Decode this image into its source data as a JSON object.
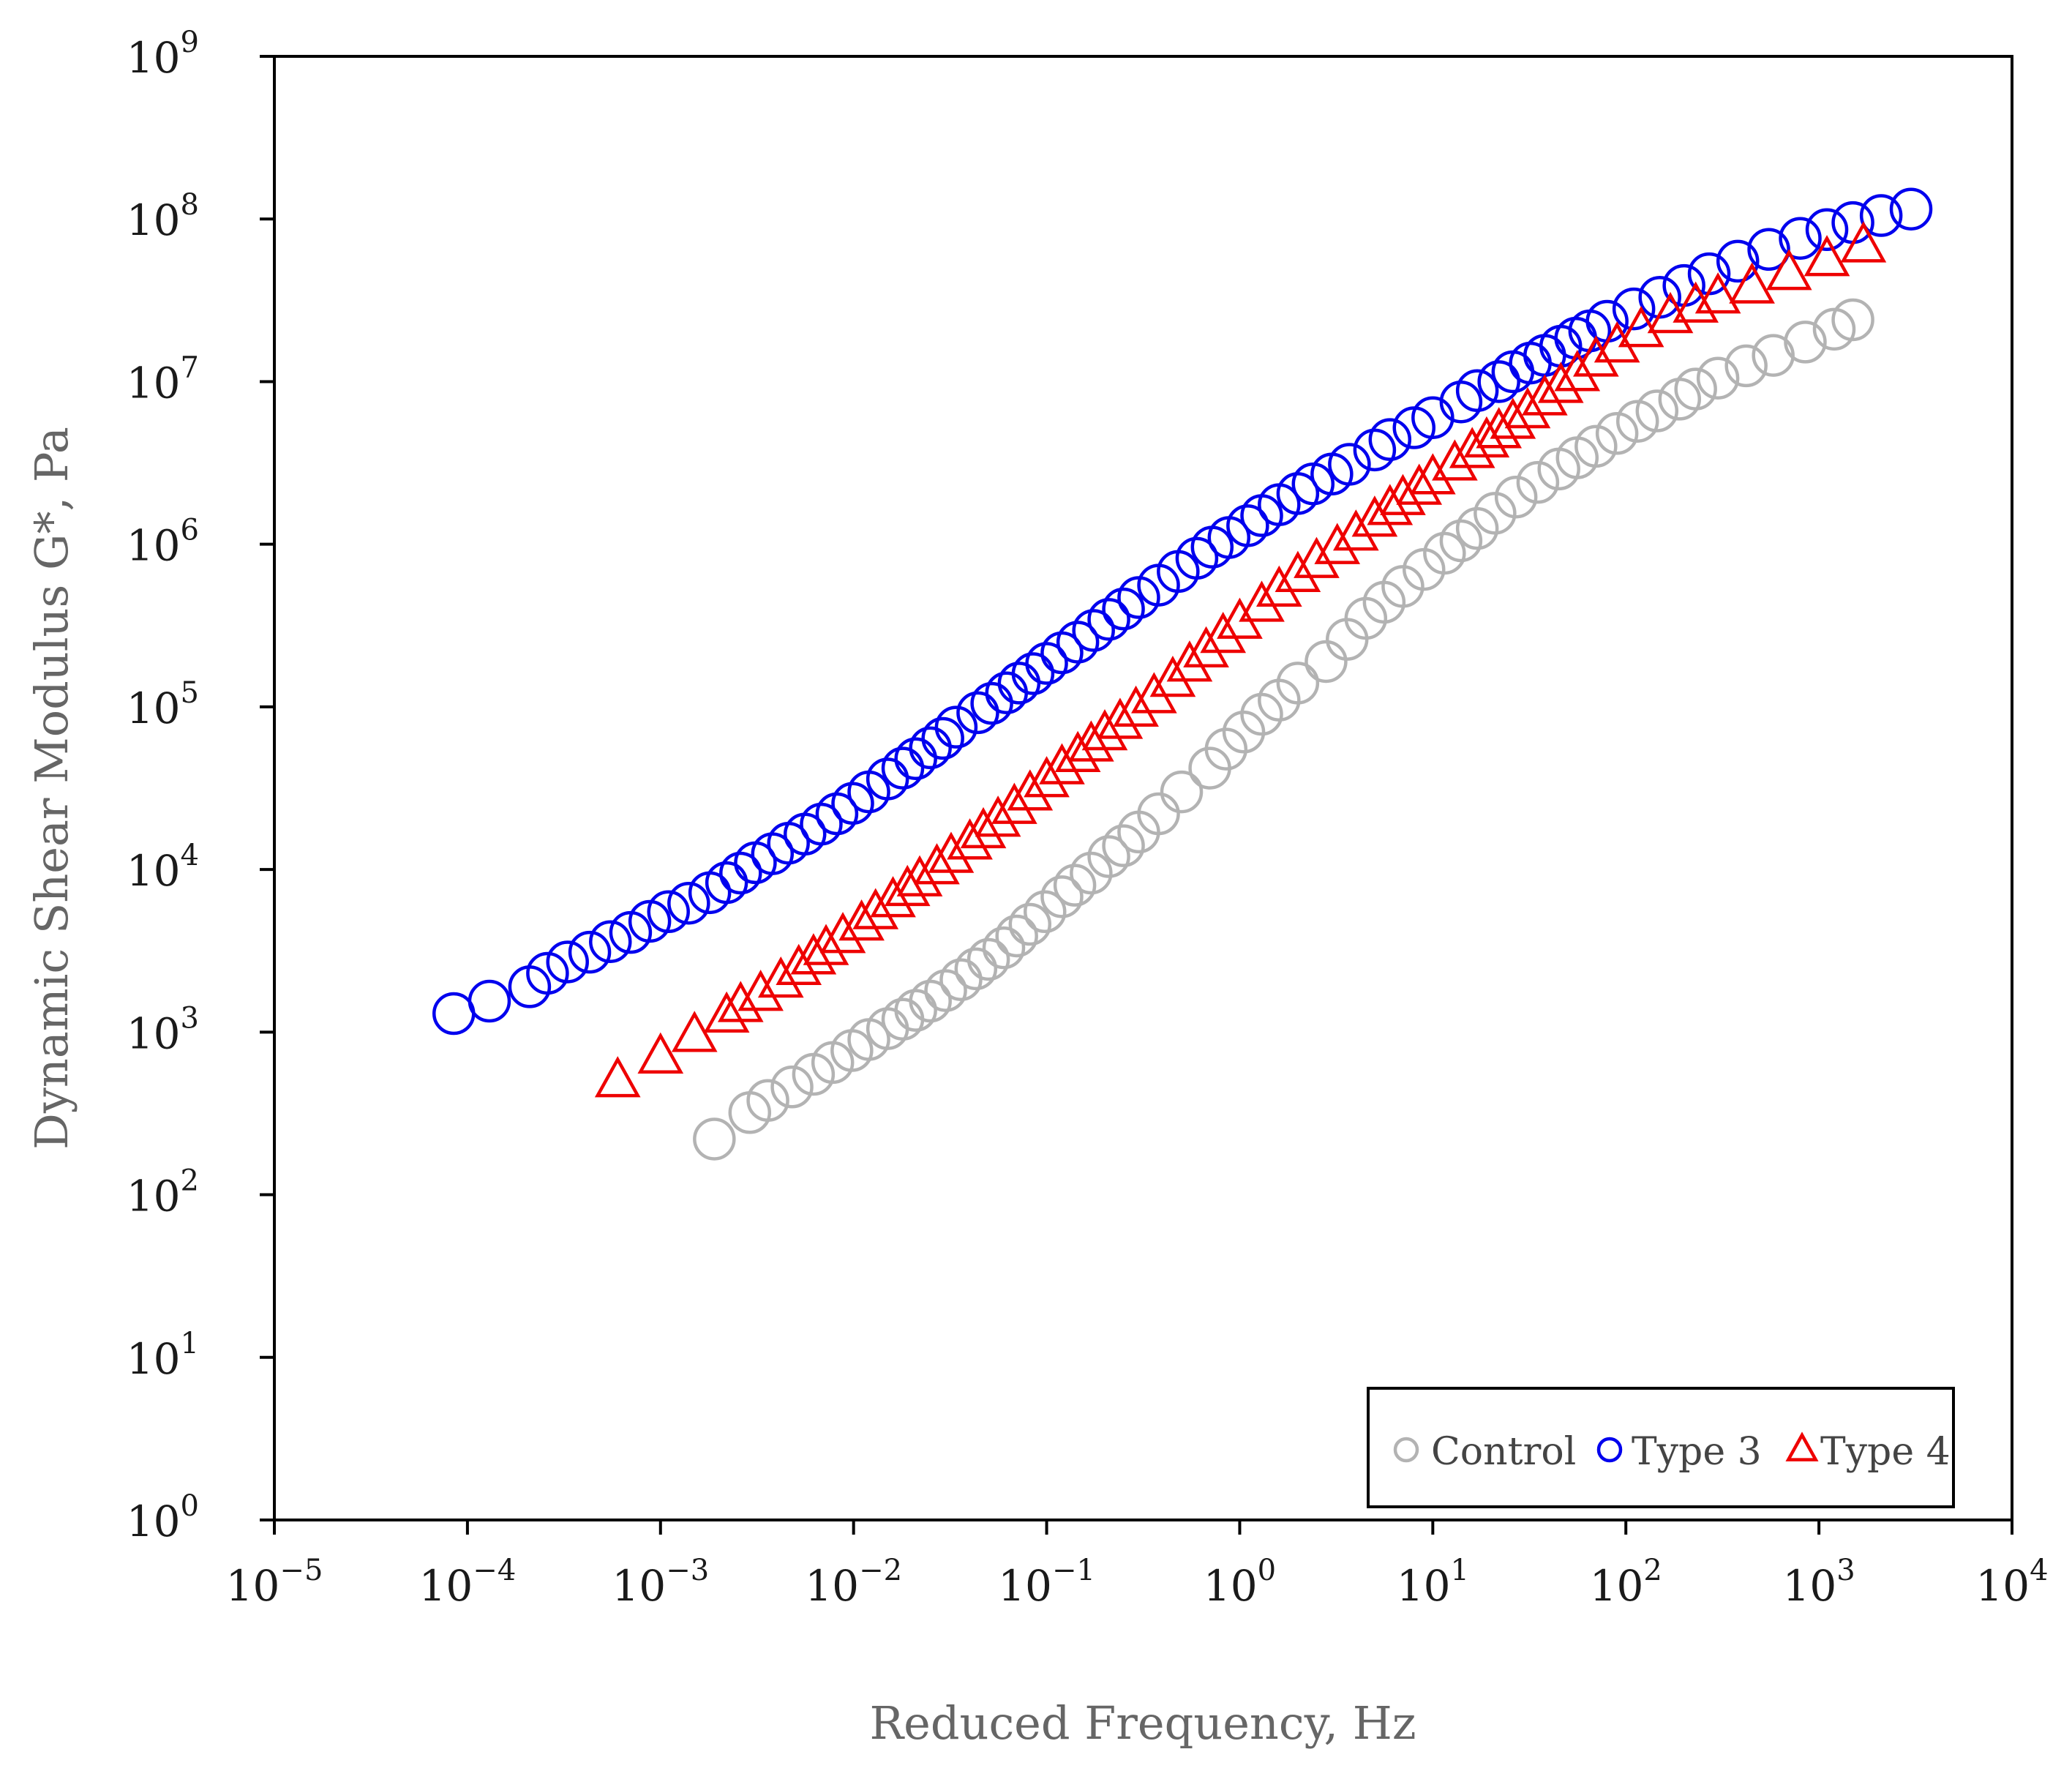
{
  "chart_data": {
    "type": "scatter",
    "title": "",
    "xlabel": "Reduced Frequency, Hz",
    "ylabel": "Dynamic Shear Modulus G*, Pa",
    "x_scale": "log",
    "y_scale": "log",
    "xlim": [
      1e-05,
      10000
    ],
    "ylim": [
      1,
      1000000000
    ],
    "x_ticks": [
      {
        "base": "10",
        "exp": "−5",
        "value": 1e-05
      },
      {
        "base": "10",
        "exp": "−4",
        "value": 0.0001
      },
      {
        "base": "10",
        "exp": "−3",
        "value": 0.001
      },
      {
        "base": "10",
        "exp": "−2",
        "value": 0.01
      },
      {
        "base": "10",
        "exp": "−1",
        "value": 0.1
      },
      {
        "base": "10",
        "exp": "0",
        "value": 1
      },
      {
        "base": "10",
        "exp": "1",
        "value": 10
      },
      {
        "base": "10",
        "exp": "2",
        "value": 100
      },
      {
        "base": "10",
        "exp": "3",
        "value": 1000
      },
      {
        "base": "10",
        "exp": "4",
        "value": 10000
      }
    ],
    "y_ticks": [
      {
        "base": "10",
        "exp": "0",
        "value": 1
      },
      {
        "base": "10",
        "exp": "1",
        "value": 10
      },
      {
        "base": "10",
        "exp": "2",
        "value": 100
      },
      {
        "base": "10",
        "exp": "3",
        "value": 1000
      },
      {
        "base": "10",
        "exp": "4",
        "value": 10000
      },
      {
        "base": "10",
        "exp": "5",
        "value": 100000
      },
      {
        "base": "10",
        "exp": "6",
        "value": 1000000
      },
      {
        "base": "10",
        "exp": "7",
        "value": 10000000
      },
      {
        "base": "10",
        "exp": "8",
        "value": 100000000
      },
      {
        "base": "10",
        "exp": "9",
        "value": 1000000000
      }
    ],
    "grid": false,
    "legend_position": "bottom-right",
    "series": [
      {
        "name": "Control",
        "marker": "circle",
        "color": "#b3b3b3",
        "x": [
          0.0019,
          0.0029,
          0.0036,
          0.0048,
          0.0062,
          0.0078,
          0.0098,
          0.012,
          0.015,
          0.018,
          0.021,
          0.025,
          0.03,
          0.036,
          0.043,
          0.05,
          0.06,
          0.07,
          0.082,
          0.098,
          0.12,
          0.14,
          0.17,
          0.21,
          0.25,
          0.3,
          0.38,
          0.5,
          0.7,
          0.85,
          1.05,
          1.3,
          1.6,
          2.0,
          2.8,
          3.6,
          4.5,
          5.6,
          7.0,
          9.0,
          11.5,
          14,
          17,
          21,
          27,
          35,
          45,
          56,
          70,
          90,
          115,
          145,
          190,
          230,
          300,
          420,
          580,
          850,
          1200,
          1500
        ],
        "y": [
          220,
          320,
          380,
          460,
          550,
          650,
          770,
          900,
          1050,
          1200,
          1360,
          1550,
          1800,
          2100,
          2450,
          2800,
          3300,
          3900,
          4600,
          5500,
          6800,
          8000,
          9500,
          12000,
          14000,
          17000,
          22000,
          30000,
          42000,
          55000,
          70000,
          90000,
          110000,
          140000,
          190000,
          260000,
          350000,
          440000,
          550000,
          700000,
          880000,
          1050000,
          1250000,
          1550000,
          1950000,
          2400000,
          2900000,
          3400000,
          4000000,
          4800000,
          5700000,
          6600000,
          7800000,
          9000000,
          10500000,
          12500000,
          14500000,
          17500000,
          21000000,
          24000000
        ]
      },
      {
        "name": "Type 3",
        "marker": "circle",
        "color": "#0000ee",
        "x": [
          8.5e-05,
          0.00013,
          0.00021,
          0.00026,
          0.00033,
          0.00043,
          0.00055,
          0.0007,
          0.00088,
          0.0011,
          0.0014,
          0.0018,
          0.0022,
          0.0026,
          0.0031,
          0.0038,
          0.0046,
          0.0056,
          0.0068,
          0.0082,
          0.0099,
          0.012,
          0.015,
          0.018,
          0.021,
          0.025,
          0.029,
          0.034,
          0.044,
          0.052,
          0.062,
          0.072,
          0.085,
          0.1,
          0.12,
          0.145,
          0.175,
          0.21,
          0.25,
          0.3,
          0.38,
          0.48,
          0.6,
          0.72,
          0.88,
          1.1,
          1.3,
          1.6,
          2.0,
          2.4,
          3.0,
          3.7,
          5.0,
          6.0,
          8.0,
          10,
          14,
          17,
          22,
          26,
          32,
          38,
          46,
          55,
          65,
          80,
          110,
          150,
          200,
          270,
          380,
          550,
          800,
          1100,
          1500,
          2100,
          3000
        ],
        "y": [
          1300,
          1550,
          1900,
          2300,
          2700,
          3100,
          3600,
          4100,
          4800,
          5500,
          6200,
          7200,
          8300,
          9500,
          11000,
          12500,
          14500,
          16500,
          19000,
          22000,
          25500,
          30000,
          36000,
          42000,
          48000,
          56000,
          64000,
          75000,
          92000,
          105000,
          122000,
          140000,
          160000,
          185000,
          215000,
          250000,
          295000,
          345000,
          400000,
          470000,
          560000,
          680000,
          820000,
          960000,
          1100000,
          1300000,
          1500000,
          1750000,
          2050000,
          2350000,
          2700000,
          3100000,
          3800000,
          4400000,
          5200000,
          6000000,
          7500000,
          8800000,
          10000000,
          11500000,
          13000000,
          14500000,
          16500000,
          18500000,
          20500000,
          23500000,
          28000000,
          33000000,
          39000000,
          46000000,
          55000000,
          65000000,
          76000000,
          86000000,
          95000000,
          105000000,
          115000000
        ]
      },
      {
        "name": "Type 4",
        "marker": "triangle",
        "color": "#ee0000",
        "x": [
          0.0006,
          0.001,
          0.0015,
          0.0022,
          0.0026,
          0.0033,
          0.0042,
          0.0052,
          0.0062,
          0.0072,
          0.0088,
          0.011,
          0.013,
          0.016,
          0.019,
          0.022,
          0.027,
          0.032,
          0.04,
          0.047,
          0.056,
          0.068,
          0.082,
          0.1,
          0.12,
          0.145,
          0.17,
          0.2,
          0.24,
          0.29,
          0.36,
          0.45,
          0.55,
          0.67,
          0.82,
          1.0,
          1.3,
          1.6,
          2.0,
          2.5,
          3.2,
          4.0,
          5.0,
          6.0,
          7.0,
          8.5,
          10,
          13,
          16,
          19,
          22,
          26,
          31,
          38,
          46,
          56,
          70,
          90,
          120,
          170,
          230,
          300,
          450,
          700,
          1100,
          1700
        ],
        "y": [
          500,
          700,
          950,
          1250,
          1450,
          1700,
          2050,
          2450,
          2850,
          3250,
          3850,
          4600,
          5400,
          6400,
          7500,
          8600,
          10200,
          12000,
          14500,
          17000,
          20000,
          24000,
          29000,
          35000,
          42000,
          50000,
          58000,
          68000,
          80000,
          95000,
          115000,
          145000,
          180000,
          220000,
          270000,
          330000,
          420000,
          520000,
          640000,
          780000,
          950000,
          1150000,
          1400000,
          1650000,
          1900000,
          2200000,
          2550000,
          3100000,
          3700000,
          4300000,
          4900000,
          5600000,
          6500000,
          7800000,
          9300000,
          11000000,
          13500000,
          16500000,
          20500000,
          25000000,
          29000000,
          33000000,
          38000000,
          46000000,
          56000000,
          68000000
        ]
      }
    ]
  }
}
